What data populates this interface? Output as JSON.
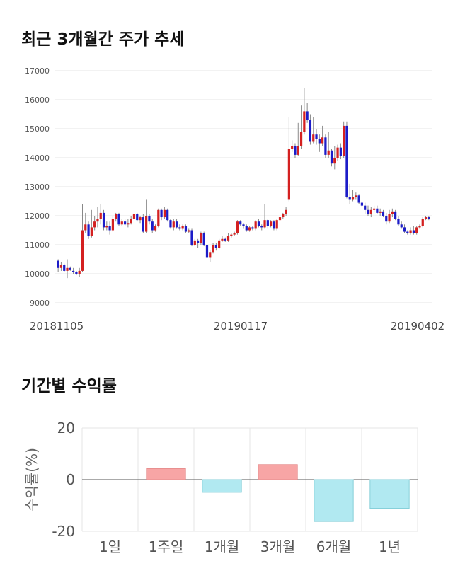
{
  "sections": {
    "price_title": "최근 3개월간 주가 추세",
    "returns_title": "기간별 수익률"
  },
  "colors": {
    "up": "#d42020",
    "down": "#1c1cc8",
    "positive_bar": "#f7a5a5",
    "negative_bar": "#b1e9f1",
    "grid": "#e6e6e6"
  },
  "chart_data": [
    {
      "type": "candlestick",
      "ylim": [
        9000,
        17000
      ],
      "yticks": [
        9000,
        10000,
        11000,
        12000,
        13000,
        14000,
        15000,
        16000,
        17000
      ],
      "xticks": [
        "20181105",
        "20190117",
        "20190402"
      ],
      "grid": true,
      "fields": [
        "open",
        "close",
        "low",
        "high"
      ],
      "candles": [
        [
          10450,
          10200,
          10050,
          10500
        ],
        [
          10200,
          10300,
          10100,
          10400
        ],
        [
          10300,
          10100,
          10050,
          10350
        ],
        [
          10100,
          10200,
          9850,
          10500
        ],
        [
          10200,
          10150,
          10100,
          10250
        ],
        [
          10100,
          10050,
          10000,
          10200
        ],
        [
          10050,
          10000,
          9950,
          10100
        ],
        [
          10000,
          10100,
          9900,
          10200
        ],
        [
          10100,
          11500,
          10050,
          12400
        ],
        [
          11500,
          11700,
          11400,
          12100
        ],
        [
          11700,
          11300,
          11200,
          11800
        ],
        [
          11300,
          11600,
          11250,
          12200
        ],
        [
          11600,
          11800,
          11500,
          12000
        ],
        [
          11800,
          11900,
          11600,
          12300
        ],
        [
          11900,
          12100,
          11700,
          12400
        ],
        [
          12100,
          11600,
          11500,
          12200
        ],
        [
          11600,
          11650,
          11500,
          11800
        ],
        [
          11650,
          11500,
          11350,
          11800
        ],
        [
          11500,
          11900,
          11450,
          12000
        ],
        [
          11900,
          12050,
          11800,
          12100
        ],
        [
          12050,
          11700,
          11650,
          12100
        ],
        [
          11700,
          11800,
          11650,
          11900
        ],
        [
          11800,
          11700,
          11650,
          11900
        ],
        [
          11700,
          11750,
          11600,
          11900
        ],
        [
          11750,
          11900,
          11700,
          12000
        ],
        [
          11900,
          12050,
          11850,
          12100
        ],
        [
          12050,
          11850,
          11800,
          12100
        ],
        [
          11850,
          11950,
          11750,
          12000
        ],
        [
          11950,
          11450,
          11400,
          12050
        ],
        [
          11450,
          12000,
          11400,
          12550
        ],
        [
          12000,
          11800,
          11700,
          12050
        ],
        [
          11800,
          11500,
          11400,
          11900
        ],
        [
          11500,
          11650,
          11450,
          11700
        ],
        [
          11650,
          12200,
          11600,
          12250
        ],
        [
          12200,
          11950,
          11850,
          12250
        ],
        [
          11950,
          12200,
          11900,
          12300
        ],
        [
          12200,
          11850,
          11800,
          12250
        ],
        [
          11850,
          11600,
          11550,
          11900
        ],
        [
          11600,
          11800,
          11500,
          11900
        ],
        [
          11800,
          11600,
          11550,
          11900
        ],
        [
          11600,
          11550,
          11500,
          11700
        ],
        [
          11550,
          11650,
          11500,
          11700
        ],
        [
          11650,
          11450,
          11400,
          11700
        ],
        [
          11450,
          11500,
          11400,
          11550
        ],
        [
          11500,
          11000,
          10950,
          11550
        ],
        [
          11000,
          11150,
          10950,
          11200
        ],
        [
          11150,
          11050,
          10900,
          11200
        ],
        [
          11050,
          11400,
          11000,
          11450
        ],
        [
          11400,
          11000,
          10950,
          11450
        ],
        [
          11000,
          10550,
          10400,
          11050
        ],
        [
          10550,
          10750,
          10400,
          10800
        ],
        [
          10750,
          11000,
          10700,
          11050
        ],
        [
          11000,
          10900,
          10800,
          11050
        ],
        [
          10900,
          11150,
          10850,
          11200
        ],
        [
          11150,
          11200,
          11100,
          11300
        ],
        [
          11200,
          11150,
          11100,
          11250
        ],
        [
          11150,
          11300,
          11100,
          11400
        ],
        [
          11300,
          11350,
          11250,
          11400
        ],
        [
          11350,
          11400,
          11300,
          11450
        ],
        [
          11400,
          11800,
          11350,
          11850
        ],
        [
          11800,
          11700,
          11650,
          11850
        ],
        [
          11700,
          11650,
          11550,
          11750
        ],
        [
          11650,
          11500,
          11450,
          11700
        ],
        [
          11500,
          11600,
          11450,
          11650
        ],
        [
          11600,
          11550,
          11500,
          11650
        ],
        [
          11550,
          11800,
          11500,
          11850
        ],
        [
          11800,
          11650,
          11600,
          11900
        ],
        [
          11650,
          11600,
          11500,
          11700
        ],
        [
          11600,
          11850,
          11550,
          12400
        ],
        [
          11850,
          11650,
          11550,
          11900
        ],
        [
          11650,
          11800,
          11600,
          11850
        ],
        [
          11800,
          11550,
          11500,
          11850
        ],
        [
          11550,
          11850,
          11500,
          11900
        ],
        [
          11850,
          11950,
          11800,
          12000
        ],
        [
          11950,
          12050,
          11900,
          12100
        ],
        [
          12050,
          12200,
          12000,
          12300
        ],
        [
          12550,
          14300,
          12500,
          15400
        ],
        [
          14300,
          14400,
          14200,
          14600
        ],
        [
          14400,
          14100,
          14000,
          14500
        ],
        [
          14100,
          14400,
          14050,
          15200
        ],
        [
          14400,
          14900,
          14300,
          15800
        ],
        [
          14900,
          15600,
          14800,
          16400
        ],
        [
          15600,
          15300,
          15200,
          15900
        ],
        [
          15300,
          14550,
          14450,
          15500
        ],
        [
          14550,
          14800,
          14500,
          15400
        ],
        [
          14800,
          14650,
          14450,
          15000
        ],
        [
          14650,
          14500,
          14200,
          14800
        ],
        [
          14500,
          14700,
          14400,
          15100
        ],
        [
          14700,
          14100,
          14000,
          14800
        ],
        [
          14100,
          14250,
          14000,
          14900
        ],
        [
          14250,
          13800,
          13700,
          14300
        ],
        [
          13800,
          14000,
          13600,
          14400
        ],
        [
          14000,
          14350,
          13900,
          14450
        ],
        [
          14350,
          14050,
          13950,
          14500
        ],
        [
          14050,
          15100,
          14000,
          15250
        ],
        [
          15100,
          12650,
          12600,
          15250
        ],
        [
          12650,
          12550,
          12400,
          13100
        ],
        [
          12550,
          12650,
          12500,
          12900
        ],
        [
          12650,
          12700,
          12550,
          12800
        ],
        [
          12700,
          12450,
          12400,
          12750
        ],
        [
          12450,
          12350,
          12300,
          12500
        ],
        [
          12350,
          12200,
          12050,
          12450
        ],
        [
          12200,
          12050,
          12000,
          12350
        ],
        [
          12050,
          12200,
          11950,
          12300
        ],
        [
          12200,
          12250,
          12150,
          12350
        ],
        [
          12250,
          12100,
          12050,
          12350
        ],
        [
          12100,
          12150,
          12000,
          12250
        ],
        [
          12150,
          12000,
          11950,
          12200
        ],
        [
          12000,
          11800,
          11700,
          12100
        ],
        [
          11800,
          12050,
          11750,
          12200
        ],
        [
          12050,
          12150,
          11950,
          12250
        ],
        [
          12150,
          11900,
          11850,
          12200
        ],
        [
          11900,
          11700,
          11650,
          12000
        ],
        [
          11700,
          11600,
          11550,
          11800
        ],
        [
          11600,
          11450,
          11400,
          11700
        ],
        [
          11450,
          11400,
          11350,
          11500
        ],
        [
          11400,
          11500,
          11350,
          11600
        ],
        [
          11500,
          11400,
          11350,
          11650
        ],
        [
          11400,
          11600,
          11350,
          11650
        ],
        [
          11600,
          11650,
          11550,
          11700
        ],
        [
          11650,
          11900,
          11600,
          11950
        ],
        [
          11900,
          11950,
          11850,
          12000
        ],
        [
          11950,
          11900,
          11850,
          12000
        ]
      ]
    },
    {
      "type": "bar",
      "ylabel": "수익률(%)",
      "ylim": [
        -20,
        20
      ],
      "yticks": [
        20,
        0,
        -20
      ],
      "categories": [
        "1일",
        "1주일",
        "1개월",
        "3개월",
        "6개월",
        "1년"
      ],
      "values": [
        0,
        4.3,
        -4.9,
        5.8,
        -16.2,
        -11.1
      ],
      "grid": true
    }
  ]
}
